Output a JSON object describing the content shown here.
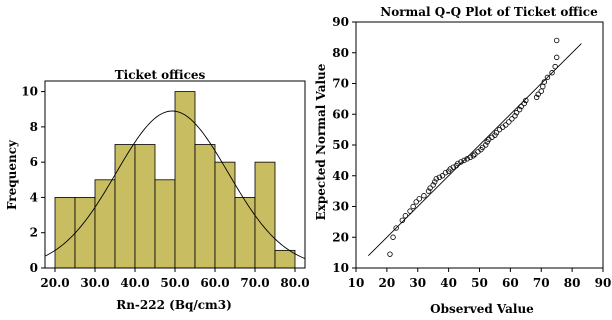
{
  "chart_data": [
    {
      "type": "bar",
      "subtype": "histogram",
      "title": "Ticket offices",
      "xlabel": "Rn-222 (Bq/cm3)",
      "ylabel": "Frequency",
      "bin_width": 5,
      "bins": [
        {
          "start": 20,
          "end": 25,
          "count": 4
        },
        {
          "start": 25,
          "end": 30,
          "count": 4
        },
        {
          "start": 30,
          "end": 35,
          "count": 5
        },
        {
          "start": 35,
          "end": 40,
          "count": 7
        },
        {
          "start": 40,
          "end": 45,
          "count": 7
        },
        {
          "start": 45,
          "end": 50,
          "count": 5
        },
        {
          "start": 50,
          "end": 55,
          "count": 10
        },
        {
          "start": 55,
          "end": 60,
          "count": 7
        },
        {
          "start": 60,
          "end": 65,
          "count": 6
        },
        {
          "start": 65,
          "end": 70,
          "count": 4
        },
        {
          "start": 70,
          "end": 75,
          "count": 6
        },
        {
          "start": 75,
          "end": 80,
          "count": 1
        }
      ],
      "xticks": [
        "20.0",
        "30.0",
        "40.0",
        "50.0",
        "60.0",
        "70.0",
        "80.0"
      ],
      "yticks": [
        "0",
        "2",
        "4",
        "6",
        "8",
        "10"
      ],
      "xlim": [
        17.5,
        82.5
      ],
      "ylim": [
        0,
        10.6
      ],
      "normal_curve": {
        "mean": 49.3,
        "sd": 14.0,
        "peak": 8.9
      },
      "bar_color": "#c9bd62",
      "bar_edge": "#000000"
    },
    {
      "type": "scatter",
      "subtype": "qq-plot",
      "title": "Normal Q-Q Plot of Ticket office",
      "xlabel": "Observed Value",
      "ylabel": "Expected Normal Value",
      "xticks": [
        "10",
        "20",
        "30",
        "40",
        "50",
        "60",
        "70",
        "80",
        "90"
      ],
      "yticks": [
        "10",
        "20",
        "30",
        "40",
        "50",
        "60",
        "70",
        "80",
        "90"
      ],
      "xlim": [
        10,
        90
      ],
      "ylim": [
        10,
        90
      ],
      "reference_line": {
        "x1": 14,
        "y1": 14,
        "x2": 83,
        "y2": 83
      },
      "points": [
        [
          21,
          14.5
        ],
        [
          22,
          20
        ],
        [
          23,
          23
        ],
        [
          25,
          25.5
        ],
        [
          26,
          27
        ],
        [
          27.5,
          28.5
        ],
        [
          28.5,
          30
        ],
        [
          29.5,
          31.5
        ],
        [
          30.5,
          32.5
        ],
        [
          32,
          33.5
        ],
        [
          33.5,
          35
        ],
        [
          34,
          36
        ],
        [
          35,
          37
        ],
        [
          35.5,
          38
        ],
        [
          36,
          39
        ],
        [
          37,
          39.5
        ],
        [
          38,
          40
        ],
        [
          39,
          41
        ],
        [
          40,
          41.5
        ],
        [
          40.5,
          42.2
        ],
        [
          41.5,
          42.8
        ],
        [
          42.5,
          43.3
        ],
        [
          43,
          44
        ],
        [
          44,
          44.5
        ],
        [
          45,
          45
        ],
        [
          46,
          45.5
        ],
        [
          47,
          46
        ],
        [
          48,
          46.5
        ],
        [
          48.5,
          47
        ],
        [
          49.5,
          47.8
        ],
        [
          50.5,
          48.5
        ],
        [
          51,
          49.2
        ],
        [
          52,
          50
        ],
        [
          52.5,
          51
        ],
        [
          53,
          51.8
        ],
        [
          54,
          52.5
        ],
        [
          55,
          53.2
        ],
        [
          55.5,
          54
        ],
        [
          56.5,
          55
        ],
        [
          57.5,
          55.8
        ],
        [
          58.5,
          56.5
        ],
        [
          59.5,
          57.5
        ],
        [
          60.5,
          58.5
        ],
        [
          61.5,
          59.5
        ],
        [
          62,
          60.5
        ],
        [
          63,
          61.5
        ],
        [
          63.5,
          62.5
        ],
        [
          64.5,
          63.5
        ],
        [
          65,
          64.5
        ],
        [
          68.5,
          65.5
        ],
        [
          69,
          66.5
        ],
        [
          70,
          67.5
        ],
        [
          70.5,
          69
        ],
        [
          71,
          70.5
        ],
        [
          72,
          72
        ],
        [
          73.5,
          73.5
        ],
        [
          74.5,
          75.5
        ],
        [
          75,
          78.5
        ],
        [
          75,
          84
        ]
      ]
    }
  ]
}
